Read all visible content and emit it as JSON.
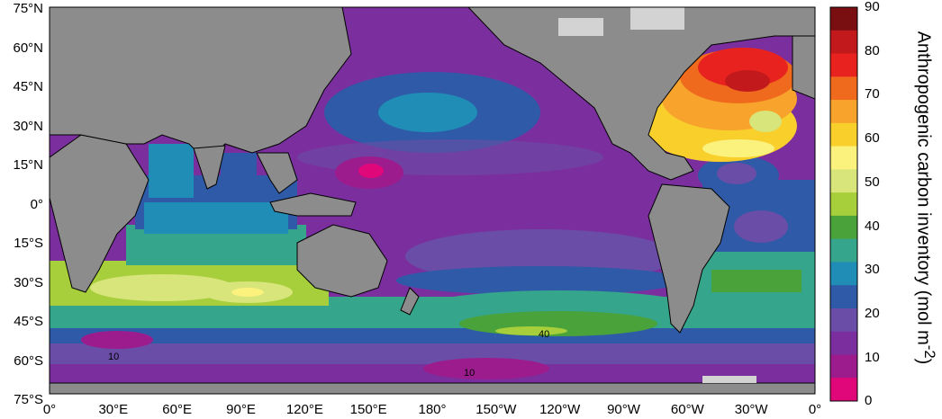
{
  "map": {
    "lat_labels": [
      "75°N",
      "60°N",
      "45°N",
      "30°N",
      "15°N",
      "0°",
      "15°S",
      "30°S",
      "45°S",
      "60°S",
      "75°S"
    ],
    "lon_labels": [
      "0°",
      "30°E",
      "60°E",
      "90°E",
      "120°E",
      "150°E",
      "180°",
      "150°W",
      "120°W",
      "90°W",
      "60°W",
      "30°W",
      "0°"
    ],
    "contour_labels": [
      "40",
      "10",
      "10"
    ]
  },
  "colorbar": {
    "title": "Anthropogenic carbon inventory (mol m-2)",
    "title_parts": {
      "main": "Anthropogenic carbon inventory (mol m",
      "superscript": "-2",
      "close": ")"
    },
    "ticks": [
      "90",
      "80",
      "70",
      "60",
      "50",
      "40",
      "30",
      "20",
      "10",
      "0"
    ],
    "colors": [
      "#7a0f12",
      "#c21a1c",
      "#e8231f",
      "#f06a1e",
      "#f7a32c",
      "#f9cf2c",
      "#fbf27d",
      "#d7e57b",
      "#a7cf3b",
      "#4aa23b",
      "#35a58b",
      "#1f8db6",
      "#2e5aa8",
      "#6a4da6",
      "#7b2f9e",
      "#9c1c8e",
      "#e0077a"
    ]
  },
  "legend": {
    "land_color": "#8c8c8c",
    "ice_color": "#d3d3d3"
  }
}
